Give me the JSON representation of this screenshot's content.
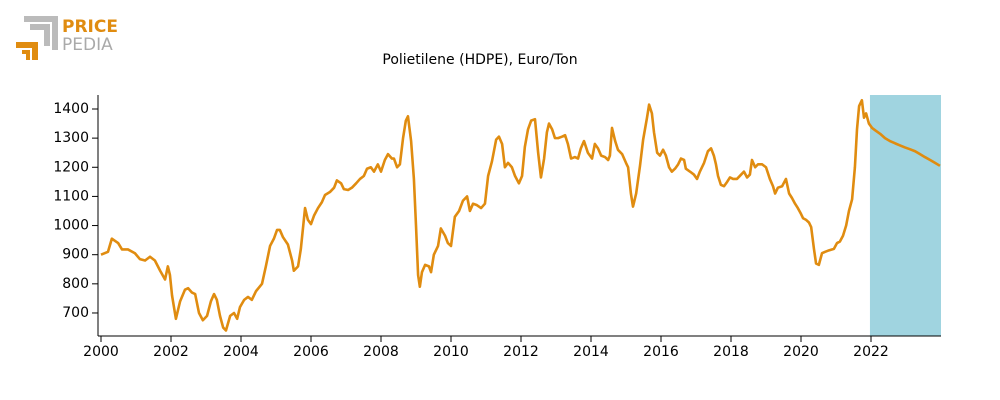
{
  "logo": {
    "top": "PRICE",
    "bottom": "PEDIA"
  },
  "chart_data": {
    "type": "line",
    "title": "Polietilene (HDPE), Euro/Ton",
    "x": [
      2000.0,
      2000.2,
      2000.31,
      2000.49,
      2000.6,
      2000.77,
      2000.97,
      2001.11,
      2001.26,
      2001.4,
      2001.54,
      2001.69,
      2001.83,
      2001.91,
      2001.97,
      2002.03,
      2002.14,
      2002.26,
      2002.4,
      2002.49,
      2002.6,
      2002.69,
      2002.8,
      2002.91,
      2003.03,
      2003.14,
      2003.23,
      2003.31,
      2003.4,
      2003.49,
      2003.57,
      2003.69,
      2003.8,
      2003.89,
      2003.97,
      2004.09,
      2004.2,
      2004.31,
      2004.43,
      2004.6,
      2004.71,
      2004.83,
      2004.94,
      2005.03,
      2005.11,
      2005.2,
      2005.34,
      2005.46,
      2005.51,
      2005.63,
      2005.71,
      2005.83,
      2005.91,
      2006.0,
      2006.09,
      2006.2,
      2006.31,
      2006.4,
      2006.54,
      2006.66,
      2006.74,
      2006.86,
      2006.94,
      2007.06,
      2007.17,
      2007.29,
      2007.4,
      2007.51,
      2007.6,
      2007.71,
      2007.8,
      2007.91,
      2008.0,
      2008.11,
      2008.2,
      2008.31,
      2008.37,
      2008.46,
      2008.54,
      2008.63,
      2008.71,
      2008.77,
      2008.86,
      2008.94,
      2009.0,
      2009.06,
      2009.11,
      2009.17,
      2009.26,
      2009.37,
      2009.43,
      2009.51,
      2009.63,
      2009.71,
      2009.83,
      2009.91,
      2010.0,
      2010.11,
      2010.23,
      2010.34,
      2010.46,
      2010.54,
      2010.63,
      2010.74,
      2010.86,
      2010.97,
      2011.06,
      2011.17,
      2011.29,
      2011.37,
      2011.46,
      2011.54,
      2011.63,
      2011.74,
      2011.83,
      2011.94,
      2012.03,
      2012.11,
      2012.2,
      2012.29,
      2012.4,
      2012.49,
      2012.57,
      2012.66,
      2012.74,
      2012.8,
      2012.89,
      2012.97,
      2013.06,
      2013.17,
      2013.26,
      2013.34,
      2013.43,
      2013.54,
      2013.63,
      2013.71,
      2013.8,
      2013.91,
      2014.03,
      2014.11,
      2014.2,
      2014.29,
      2014.4,
      2014.49,
      2014.54,
      2014.6,
      2014.69,
      2014.77,
      2014.89,
      2015.0,
      2015.06,
      2015.14,
      2015.2,
      2015.29,
      2015.4,
      2015.49,
      2015.6,
      2015.66,
      2015.74,
      2015.8,
      2015.89,
      2015.97,
      2016.06,
      2016.14,
      2016.23,
      2016.31,
      2016.4,
      2016.49,
      2016.57,
      2016.66,
      2016.71,
      2016.83,
      2016.94,
      2017.03,
      2017.11,
      2017.23,
      2017.34,
      2017.43,
      2017.51,
      2017.57,
      2017.63,
      2017.71,
      2017.8,
      2017.89,
      2017.97,
      2018.06,
      2018.17,
      2018.29,
      2018.37,
      2018.46,
      2018.54,
      2018.6,
      2018.69,
      2018.77,
      2018.89,
      2019.0,
      2019.11,
      2019.2,
      2019.26,
      2019.34,
      2019.46,
      2019.57,
      2019.66,
      2019.74,
      2019.83,
      2019.91,
      2020.0,
      2020.06,
      2020.14,
      2020.23,
      2020.29,
      2020.37,
      2020.43,
      2020.51,
      2020.6,
      2020.69,
      2020.8,
      2020.94,
      2021.03,
      2021.11,
      2021.2,
      2021.29,
      2021.37,
      2021.46,
      2021.54,
      2021.6,
      2021.66,
      2021.74,
      2021.8,
      2021.86,
      2021.94,
      2022.03,
      2022.14,
      2022.26,
      2022.4,
      2022.54,
      2022.69,
      2022.83,
      2022.97,
      2023.11,
      2023.26,
      2023.4,
      2023.54,
      2023.69,
      2023.83,
      2023.97
    ],
    "series": [
      {
        "name": "HDPE",
        "color": "#e08c10",
        "values": [
          900,
          910,
          955,
          940,
          918,
          918,
          905,
          885,
          880,
          893,
          880,
          845,
          815,
          860,
          830,
          760,
          680,
          740,
          780,
          785,
          770,
          765,
          700,
          675,
          690,
          740,
          765,
          745,
          690,
          650,
          640,
          690,
          700,
          680,
          720,
          745,
          755,
          745,
          775,
          800,
          860,
          930,
          955,
          985,
          985,
          960,
          935,
          880,
          845,
          860,
          920,
          1060,
          1020,
          1005,
          1035,
          1060,
          1080,
          1105,
          1115,
          1130,
          1155,
          1145,
          1125,
          1122,
          1130,
          1145,
          1160,
          1170,
          1195,
          1200,
          1185,
          1210,
          1185,
          1225,
          1245,
          1230,
          1230,
          1200,
          1210,
          1300,
          1360,
          1375,
          1290,
          1160,
          1000,
          830,
          790,
          840,
          865,
          860,
          840,
          900,
          930,
          990,
          965,
          940,
          930,
          1030,
          1050,
          1085,
          1100,
          1050,
          1075,
          1070,
          1060,
          1075,
          1170,
          1220,
          1295,
          1305,
          1280,
          1200,
          1215,
          1200,
          1170,
          1145,
          1170,
          1270,
          1330,
          1360,
          1365,
          1250,
          1165,
          1230,
          1320,
          1350,
          1330,
          1300,
          1300,
          1305,
          1310,
          1280,
          1230,
          1235,
          1230,
          1265,
          1290,
          1250,
          1230,
          1280,
          1265,
          1240,
          1235,
          1225,
          1240,
          1335,
          1290,
          1260,
          1245,
          1215,
          1200,
          1110,
          1065,
          1110,
          1205,
          1295,
          1370,
          1415,
          1385,
          1320,
          1250,
          1240,
          1260,
          1240,
          1200,
          1185,
          1195,
          1210,
          1230,
          1225,
          1195,
          1185,
          1175,
          1160,
          1185,
          1215,
          1255,
          1265,
          1240,
          1210,
          1170,
          1140,
          1135,
          1150,
          1165,
          1160,
          1160,
          1175,
          1185,
          1165,
          1175,
          1225,
          1200,
          1210,
          1210,
          1200,
          1160,
          1135,
          1110,
          1130,
          1135,
          1160,
          1110,
          1095,
          1075,
          1060,
          1040,
          1025,
          1020,
          1010,
          995,
          920,
          870,
          865,
          905,
          910,
          915,
          920,
          940,
          945,
          965,
          1000,
          1050,
          1090,
          1200,
          1330,
          1410,
          1430,
          1370,
          1385,
          1350,
          1335,
          1325,
          1315,
          1300,
          1290,
          1282,
          1275,
          1268,
          1262,
          1255,
          1245,
          1235,
          1225,
          1215,
          1205
        ]
      }
    ],
    "forecast_start": 2021.97,
    "forecast_color": "#a0d4e0",
    "xlim": [
      2000,
      2024
    ],
    "xticks": [
      2000,
      2002,
      2004,
      2006,
      2008,
      2010,
      2012,
      2014,
      2016,
      2018,
      2020,
      2022
    ],
    "ylim": [
      621,
      1448
    ],
    "yticks": [
      700,
      800,
      900,
      1000,
      1100,
      1200,
      1300,
      1400
    ],
    "grid": false
  }
}
